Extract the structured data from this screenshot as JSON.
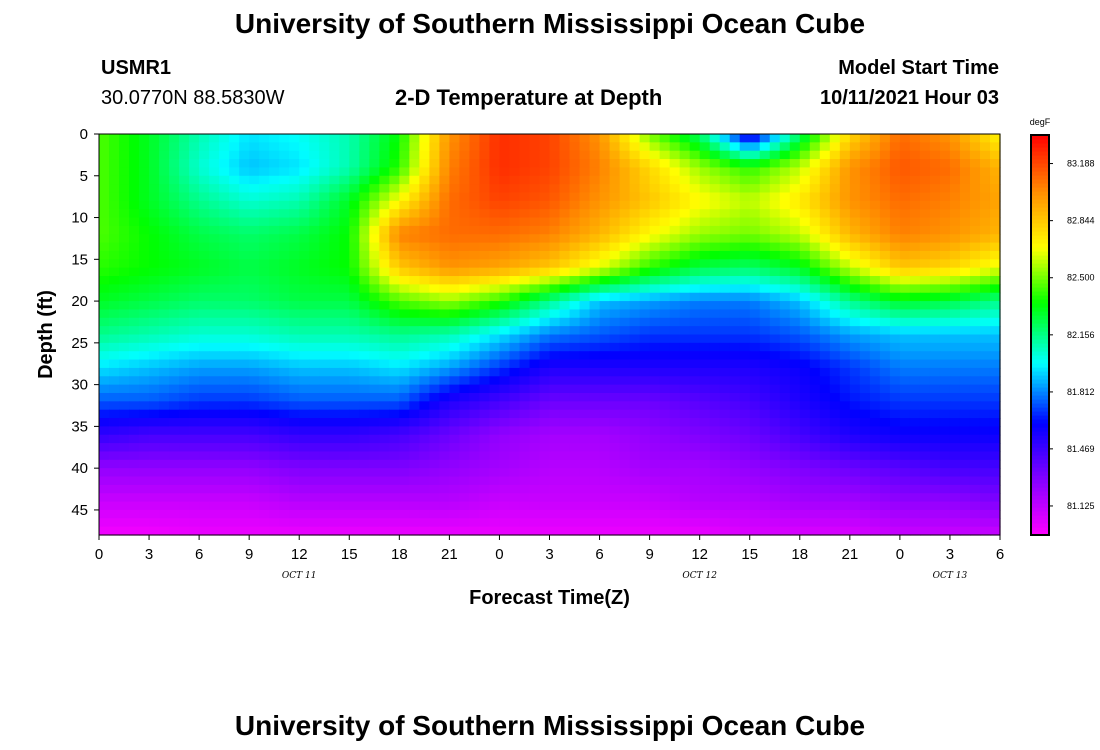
{
  "page": {
    "title_top": "University of Southern Mississippi Ocean Cube",
    "title_bottom": "University of Southern Mississippi Ocean Cube",
    "station": "USMR1",
    "coords": "30.0770N  88.5830W",
    "subtitle": "2-D Temperature at Depth",
    "model_start_label": "Model Start Time",
    "model_start_value": "10/11/2021 Hour 03"
  },
  "chart_data": {
    "type": "heatmap",
    "title": "2-D Temperature at Depth",
    "xlabel": "Forecast Time(Z)",
    "ylabel": "Depth (ft)",
    "x_unit": "hours from 00Z Oct 11",
    "xlim": [
      0,
      54
    ],
    "ylim": [
      0,
      48
    ],
    "y_inverted": true,
    "x_ticks": [
      0,
      3,
      6,
      9,
      12,
      15,
      18,
      21,
      24,
      27,
      30,
      33,
      36,
      39,
      42,
      45,
      48,
      51,
      54
    ],
    "x_tick_labels": [
      "0",
      "3",
      "6",
      "9",
      "12",
      "15",
      "18",
      "21",
      "0",
      "3",
      "6",
      "9",
      "12",
      "15",
      "18",
      "21",
      "0",
      "3",
      "6"
    ],
    "y_ticks": [
      0,
      5,
      10,
      15,
      20,
      25,
      30,
      35,
      40,
      45
    ],
    "y_tick_labels": [
      "0",
      "5",
      "10",
      "15",
      "20",
      "25",
      "30",
      "35",
      "40",
      "45"
    ],
    "date_labels": [
      {
        "x": 12,
        "label": "OCT 11"
      },
      {
        "x": 36,
        "label": "OCT 12"
      },
      {
        "x": 51,
        "label": "OCT 13"
      }
    ],
    "colorbar": {
      "unit": "degF",
      "ticks": [
        83.188,
        82.844,
        82.5,
        82.156,
        81.812,
        81.469,
        81.125
      ],
      "tick_labels": [
        "83.188",
        "82.844",
        "82.500",
        "82.156",
        "81.812",
        "81.469",
        "81.125"
      ],
      "vmin": 80.95,
      "vmax": 83.36
    },
    "field": {
      "grid_x": [
        0,
        3,
        6,
        9,
        12,
        15,
        18,
        21,
        24,
        27,
        30,
        33,
        36,
        39,
        42,
        45,
        48,
        51,
        54
      ],
      "grid_y": [
        0,
        4,
        8,
        12,
        16,
        20,
        24,
        28,
        32,
        36,
        40,
        44,
        48
      ],
      "values": [
        [
          82.45,
          82.3,
          82.1,
          81.95,
          82.0,
          82.1,
          82.35,
          83.0,
          83.25,
          83.2,
          83.0,
          82.5,
          82.2,
          81.5,
          82.2,
          82.8,
          83.1,
          83.0,
          82.7
        ],
        [
          82.45,
          82.3,
          82.05,
          81.9,
          81.95,
          82.1,
          82.4,
          83.05,
          83.25,
          83.2,
          83.05,
          82.8,
          82.55,
          82.4,
          82.6,
          83.0,
          83.15,
          83.1,
          82.9
        ],
        [
          82.45,
          82.3,
          82.15,
          82.05,
          82.1,
          82.3,
          82.7,
          83.1,
          83.2,
          83.15,
          83.0,
          82.85,
          82.7,
          82.6,
          82.75,
          83.0,
          83.1,
          83.05,
          82.95
        ],
        [
          82.45,
          82.35,
          82.25,
          82.2,
          82.25,
          82.35,
          83.05,
          83.1,
          83.1,
          83.05,
          82.9,
          82.7,
          82.55,
          82.5,
          82.6,
          82.9,
          83.05,
          83.0,
          82.9
        ],
        [
          82.4,
          82.35,
          82.3,
          82.25,
          82.3,
          82.35,
          82.85,
          83.0,
          82.95,
          82.85,
          82.65,
          82.4,
          82.25,
          82.2,
          82.3,
          82.6,
          82.85,
          82.8,
          82.65
        ],
        [
          82.3,
          82.25,
          82.2,
          82.2,
          82.25,
          82.25,
          82.45,
          82.55,
          82.4,
          82.15,
          81.9,
          81.85,
          81.8,
          81.8,
          81.9,
          82.15,
          82.3,
          82.25,
          82.15
        ],
        [
          82.15,
          82.1,
          82.05,
          82.05,
          82.1,
          82.1,
          82.15,
          82.1,
          81.95,
          81.8,
          81.75,
          81.7,
          81.7,
          81.7,
          81.75,
          81.85,
          81.9,
          81.9,
          81.9
        ],
        [
          81.95,
          81.9,
          81.85,
          81.85,
          81.9,
          81.9,
          81.95,
          81.85,
          81.7,
          81.55,
          81.55,
          81.55,
          81.55,
          81.55,
          81.6,
          81.7,
          81.8,
          81.8,
          81.8
        ],
        [
          81.75,
          81.75,
          81.7,
          81.7,
          81.75,
          81.75,
          81.75,
          81.55,
          81.45,
          81.35,
          81.35,
          81.35,
          81.4,
          81.45,
          81.55,
          81.65,
          81.7,
          81.7,
          81.7
        ],
        [
          81.5,
          81.45,
          81.45,
          81.45,
          81.5,
          81.5,
          81.45,
          81.35,
          81.25,
          81.2,
          81.2,
          81.25,
          81.3,
          81.35,
          81.45,
          81.55,
          81.6,
          81.6,
          81.6
        ],
        [
          81.25,
          81.25,
          81.25,
          81.25,
          81.3,
          81.3,
          81.3,
          81.25,
          81.2,
          81.15,
          81.15,
          81.2,
          81.2,
          81.25,
          81.3,
          81.35,
          81.4,
          81.45,
          81.45
        ],
        [
          81.1,
          81.1,
          81.1,
          81.1,
          81.15,
          81.15,
          81.15,
          81.15,
          81.1,
          81.1,
          81.1,
          81.1,
          81.15,
          81.15,
          81.2,
          81.2,
          81.25,
          81.25,
          81.3
        ],
        [
          80.98,
          80.98,
          81.0,
          81.0,
          81.0,
          81.0,
          81.0,
          81.0,
          81.0,
          81.0,
          81.0,
          81.0,
          81.0,
          81.05,
          81.05,
          81.05,
          81.1,
          81.1,
          81.1
        ]
      ]
    }
  }
}
